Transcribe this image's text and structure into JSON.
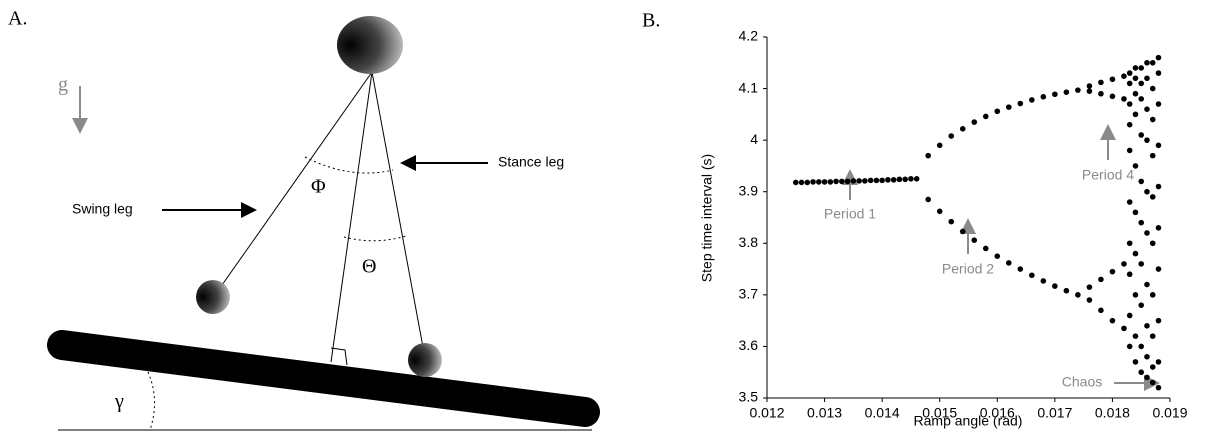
{
  "panel_a": {
    "label": "A.",
    "gravity": "g",
    "swing_leg": "Swing leg",
    "stance_leg": "Stance leg",
    "phi": "Φ",
    "theta": "Θ",
    "gamma": "γ"
  },
  "panel_b_label": "B.",
  "chart_data": {
    "type": "scatter",
    "color": "#000000",
    "x_label": "Ramp angle (rad)",
    "y_label": "Step time interval (s)",
    "xlim": [
      0.012,
      0.019
    ],
    "xticks": [
      0.012,
      0.013,
      0.014,
      0.015,
      0.016,
      0.017,
      0.018,
      0.019
    ],
    "ylim": [
      3.5,
      4.2
    ],
    "yticks": [
      3.5,
      3.6,
      3.7,
      3.8,
      3.9,
      4,
      4.1,
      4.2
    ],
    "annotations": [
      "Period 1",
      "Period 2",
      "Period 4",
      "Chaos"
    ],
    "x": [
      0.0125,
      0.0126,
      0.0127,
      0.0128,
      0.0129,
      0.013,
      0.0131,
      0.0132,
      0.0133,
      0.0134,
      0.0135,
      0.0136,
      0.0137,
      0.0138,
      0.0139,
      0.014,
      0.0141,
      0.0142,
      0.0143,
      0.0144,
      0.0145,
      0.0146,
      0.0148,
      0.015,
      0.0152,
      0.0154,
      0.0156,
      0.0158,
      0.016,
      0.0162,
      0.0164,
      0.0166,
      0.0168,
      0.017,
      0.0172,
      0.0174,
      0.0148,
      0.015,
      0.0152,
      0.0154,
      0.0156,
      0.0158,
      0.016,
      0.0162,
      0.0164,
      0.0166,
      0.0168,
      0.017,
      0.0172,
      0.0174,
      0.0176,
      0.0178,
      0.018,
      0.0182,
      0.0176,
      0.0178,
      0.018,
      0.0182,
      0.0176,
      0.0178,
      0.018,
      0.0182,
      0.0176,
      0.0178,
      0.018,
      0.0182,
      0.0183,
      0.0183,
      0.0183,
      0.0183,
      0.0183,
      0.0183,
      0.0183,
      0.0183,
      0.0183,
      0.0183,
      0.0184,
      0.0184,
      0.0184,
      0.0184,
      0.0184,
      0.0184,
      0.0184,
      0.0184,
      0.0184,
      0.0184,
      0.0185,
      0.0185,
      0.0185,
      0.0185,
      0.0185,
      0.0185,
      0.0185,
      0.0185,
      0.0185,
      0.0185,
      0.0186,
      0.0186,
      0.0186,
      0.0186,
      0.0186,
      0.0186,
      0.0186,
      0.0186,
      0.0186,
      0.0186,
      0.0187,
      0.0187,
      0.0187,
      0.0187,
      0.0187,
      0.0187,
      0.0187,
      0.0187,
      0.0187,
      0.0187,
      0.0188,
      0.0188,
      0.0188,
      0.0188,
      0.0188,
      0.0188,
      0.0188,
      0.0188,
      0.0188,
      0.0188
    ],
    "values": [
      3.918,
      3.918,
      3.918,
      3.919,
      3.919,
      3.919,
      3.919,
      3.92,
      3.92,
      3.92,
      3.921,
      3.921,
      3.921,
      3.922,
      3.922,
      3.922,
      3.923,
      3.923,
      3.924,
      3.924,
      3.925,
      3.925,
      3.97,
      3.99,
      4.008,
      4.022,
      4.035,
      4.046,
      4.056,
      4.064,
      4.071,
      4.078,
      4.084,
      4.089,
      4.093,
      4.097,
      3.885,
      3.862,
      3.842,
      3.823,
      3.806,
      3.79,
      3.775,
      3.762,
      3.75,
      3.738,
      3.727,
      3.717,
      3.708,
      3.7,
      4.105,
      4.112,
      4.118,
      4.124,
      4.095,
      4.09,
      4.085,
      4.08,
      3.715,
      3.73,
      3.745,
      3.76,
      3.69,
      3.67,
      3.65,
      3.635,
      4.13,
      4.11,
      4.07,
      4.03,
      3.98,
      3.88,
      3.8,
      3.74,
      3.66,
      3.6,
      4.14,
      4.12,
      4.09,
      4.05,
      3.95,
      3.86,
      3.78,
      3.7,
      3.62,
      3.57,
      4.14,
      4.11,
      4.08,
      4.01,
      3.92,
      3.84,
      3.76,
      3.68,
      3.6,
      3.55,
      4.15,
      4.12,
      4.06,
      4,
      3.9,
      3.82,
      3.72,
      3.64,
      3.58,
      3.54,
      4.15,
      4.1,
      4.04,
      3.97,
      3.89,
      3.8,
      3.7,
      3.62,
      3.56,
      3.53,
      4.16,
      4.13,
      4.07,
      3.99,
      3.91,
      3.83,
      3.75,
      3.65,
      3.57,
      3.52
    ]
  }
}
